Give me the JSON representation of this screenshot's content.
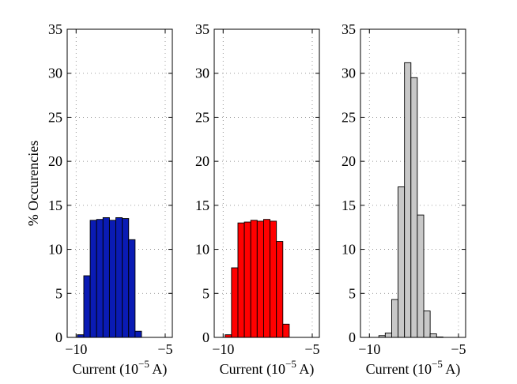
{
  "chart_data": [
    {
      "type": "bar",
      "name": "panel-1",
      "color": "#0a1bb4",
      "xlim": [
        -10.5,
        -4.6
      ],
      "ylim": [
        0,
        35
      ],
      "xticks": [
        -10,
        -5
      ],
      "xtick_labels": [
        "−10",
        "−5"
      ],
      "yticks": [
        0,
        5,
        10,
        15,
        20,
        25,
        30,
        35
      ],
      "ytick_labels": [
        "0",
        "5",
        "10",
        "15",
        "20",
        "25",
        "30",
        "35"
      ],
      "ylabel": "% Occurencies",
      "xlabel": {
        "prefix": "Current (10",
        "exponent": "−5",
        "suffix": " A)"
      },
      "bin_width": 0.36,
      "x": [
        -9.75,
        -9.39,
        -9.03,
        -8.67,
        -8.31,
        -7.95,
        -7.59,
        -7.23,
        -6.87,
        -6.51,
        -6.15
      ],
      "values": [
        0.3,
        7.0,
        13.3,
        13.4,
        13.6,
        13.3,
        13.6,
        13.5,
        11.1,
        0.7,
        0.0
      ]
    },
    {
      "type": "bar",
      "name": "panel-2",
      "color": "#ff0000",
      "xlim": [
        -10.5,
        -4.6
      ],
      "ylim": [
        0,
        35
      ],
      "xticks": [
        -10,
        -5
      ],
      "xtick_labels": [
        "−10",
        "−5"
      ],
      "yticks": [
        0,
        5,
        10,
        15,
        20,
        25,
        30,
        35
      ],
      "ytick_labels": [
        "0",
        "5",
        "10",
        "15",
        "20",
        "25",
        "30",
        "35"
      ],
      "ylabel": "",
      "xlabel": {
        "prefix": "Current (10",
        "exponent": "−5",
        "suffix": " A)"
      },
      "bin_width": 0.36,
      "x": [
        -9.71,
        -9.35,
        -8.99,
        -8.63,
        -8.27,
        -7.91,
        -7.55,
        -7.19,
        -6.83,
        -6.47,
        -6.11
      ],
      "values": [
        0.3,
        7.9,
        13.0,
        13.1,
        13.3,
        13.2,
        13.4,
        13.2,
        10.9,
        1.5,
        0.0
      ]
    },
    {
      "type": "bar",
      "name": "panel-3",
      "color": "#c8c8c8",
      "xlim": [
        -10.5,
        -4.6
      ],
      "ylim": [
        0,
        35
      ],
      "xticks": [
        -10,
        -5
      ],
      "xtick_labels": [
        "−10",
        "−5"
      ],
      "yticks": [
        0,
        5,
        10,
        15,
        20,
        25,
        30,
        35
      ],
      "ytick_labels": [
        "0",
        "5",
        "10",
        "15",
        "20",
        "25",
        "30",
        "35"
      ],
      "ylabel": "",
      "xlabel": {
        "prefix": "Current (10",
        "exponent": "−5",
        "suffix": " A)"
      },
      "bin_width": 0.36,
      "x": [
        -9.65,
        -9.29,
        -8.93,
        -8.57,
        -8.21,
        -7.85,
        -7.49,
        -7.13,
        -6.77,
        -6.41,
        -6.05,
        -5.69
      ],
      "values": [
        0.0,
        0.2,
        0.5,
        4.3,
        17.1,
        31.2,
        29.5,
        13.9,
        3.0,
        0.4,
        0.05,
        0.0
      ]
    }
  ]
}
